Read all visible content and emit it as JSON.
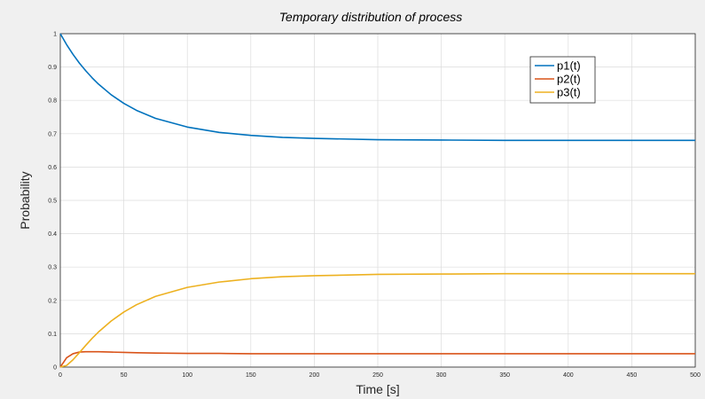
{
  "chart_data": {
    "type": "line",
    "title": "Temporary distribution of process",
    "xlabel": "Time [s]",
    "ylabel": "Probability",
    "xlim": [
      0,
      500
    ],
    "ylim": [
      0,
      1
    ],
    "xticks": [
      0,
      50,
      100,
      150,
      200,
      250,
      300,
      350,
      400,
      450,
      500
    ],
    "yticks": [
      0,
      0.1,
      0.2,
      0.3,
      0.4,
      0.5,
      0.6,
      0.7,
      0.8,
      0.9,
      1
    ],
    "xtick_labels": [
      "0",
      "50",
      "100",
      "150",
      "200",
      "250",
      "300",
      "350",
      "400",
      "450",
      "500"
    ],
    "ytick_labels": [
      "0",
      "0.1",
      "0.2",
      "0.3",
      "0.4",
      "0.5",
      "0.6",
      "0.7",
      "0.8",
      "0.9",
      "1"
    ],
    "grid": true,
    "legend_position": "top-right",
    "x": [
      0,
      5,
      10,
      15,
      20,
      25,
      30,
      40,
      50,
      60,
      75,
      100,
      125,
      150,
      175,
      200,
      250,
      300,
      350,
      400,
      450,
      500
    ],
    "series": [
      {
        "name": "p1(t)",
        "color": "#0072BD",
        "values": [
          1.0,
          0.967,
          0.938,
          0.912,
          0.889,
          0.868,
          0.849,
          0.817,
          0.791,
          0.77,
          0.746,
          0.72,
          0.704,
          0.695,
          0.689,
          0.686,
          0.682,
          0.681,
          0.68,
          0.68,
          0.68,
          0.68
        ]
      },
      {
        "name": "p2(t)",
        "color": "#D95319",
        "values": [
          0.0,
          0.028,
          0.04,
          0.045,
          0.046,
          0.046,
          0.046,
          0.045,
          0.044,
          0.043,
          0.042,
          0.041,
          0.041,
          0.04,
          0.04,
          0.04,
          0.04,
          0.04,
          0.04,
          0.04,
          0.04,
          0.04
        ]
      },
      {
        "name": "p3(t)",
        "color": "#EDB120",
        "values": [
          0.0,
          0.005,
          0.022,
          0.043,
          0.065,
          0.086,
          0.105,
          0.138,
          0.165,
          0.187,
          0.212,
          0.239,
          0.255,
          0.265,
          0.271,
          0.274,
          0.278,
          0.279,
          0.28,
          0.28,
          0.28,
          0.28
        ]
      }
    ]
  }
}
